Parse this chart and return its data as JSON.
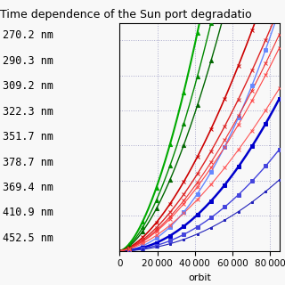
{
  "title": "Time dependence of the Sun port degradatio",
  "xlabel": "orbit",
  "ylabel": "",
  "legend_labels": [
    "270.2 nm",
    "290.3 nm",
    "309.2 nm",
    "322.3 nm",
    "351.7 nm",
    "378.7 nm",
    "369.4 nm",
    "410.9 nm",
    "452.5 nm"
  ],
  "x_range": [
    0,
    85000
  ],
  "y_range": [
    0,
    0.65
  ],
  "series": [
    {
      "label": "270.2 nm",
      "color": "#6688ff",
      "marker": "s",
      "ms": 2.5,
      "lw": 1.0,
      "scale": 9.5e-11,
      "exp": 2.0
    },
    {
      "label": "290.3 nm",
      "color": "#0000cc",
      "marker": "s",
      "ms": 2.5,
      "lw": 1.8,
      "scale": 6e-11,
      "exp": 2.0
    },
    {
      "label": "309.2 nm",
      "color": "#4444dd",
      "marker": "s",
      "ms": 2.5,
      "lw": 1.0,
      "scale": 4e-11,
      "exp": 2.0
    },
    {
      "label": "322.3 nm",
      "color": "#2222bb",
      "marker": "s",
      "ms": 2.0,
      "lw": 0.8,
      "scale": 2.8e-11,
      "exp": 2.0
    },
    {
      "label": "351.7 nm",
      "color": "#00aa00",
      "marker": "^",
      "ms": 3.0,
      "lw": 1.5,
      "scale": 1.5e-08,
      "exp": 1.65
    },
    {
      "label": "378.7 nm",
      "color": "#008800",
      "marker": "^",
      "ms": 3.0,
      "lw": 1.0,
      "scale": 1.2e-08,
      "exp": 1.65
    },
    {
      "label": "369.4 nm",
      "color": "#006600",
      "marker": "^",
      "ms": 3.0,
      "lw": 1.0,
      "scale": 1e-08,
      "exp": 1.65
    },
    {
      "label": "410.9 nm",
      "color": "#cc0000",
      "marker": "x",
      "ms": 3.0,
      "lw": 1.2,
      "scale": 1.1e-08,
      "exp": 1.6
    },
    {
      "label": "452.5 nm",
      "color": "#ff4444",
      "marker": "x",
      "ms": 2.5,
      "lw": 0.8,
      "scale": 7.5e-09,
      "exp": 1.6
    }
  ],
  "extra_red": [
    {
      "color": "#dd2222",
      "marker": "x",
      "ms": 2.5,
      "lw": 1.0,
      "scale": 9e-09,
      "exp": 1.6
    },
    {
      "color": "#ee3333",
      "marker": "x",
      "ms": 2.5,
      "lw": 0.8,
      "scale": 8e-09,
      "exp": 1.6
    },
    {
      "color": "#ff5555",
      "marker": "x",
      "ms": 2.5,
      "lw": 0.8,
      "scale": 6e-09,
      "exp": 1.6
    }
  ],
  "grid_color": "#aaaacc",
  "grid_linestyle": ":",
  "background_color": "#f8f8f8",
  "tick_fontsize": 7.5,
  "label_fontsize": 8,
  "title_fontsize": 9,
  "legend_fontsize": 8.5,
  "num_points": 12
}
